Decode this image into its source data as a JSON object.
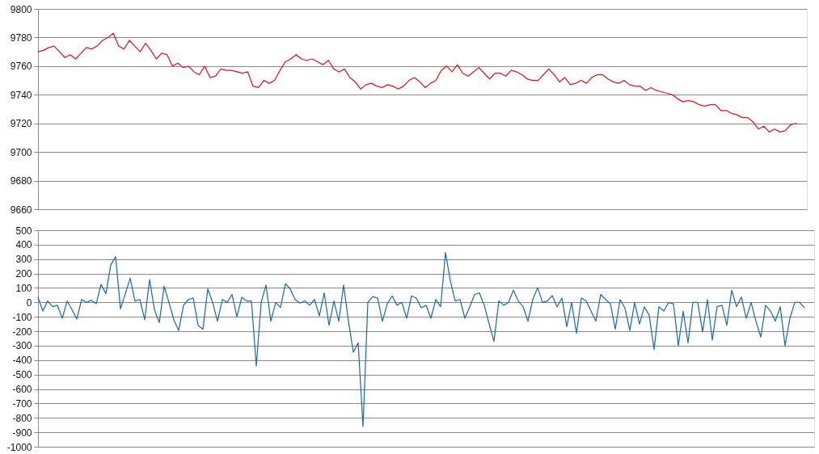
{
  "chart_data": [
    {
      "type": "line",
      "tick_labels": "y",
      "grid": "y",
      "ylim": [
        9660,
        9800
      ],
      "yticks": [
        9660,
        9680,
        9700,
        9720,
        9740,
        9760,
        9780,
        9800
      ],
      "categories": [
        null,
        null,
        null,
        null,
        null,
        null,
        null,
        null,
        null,
        null,
        null,
        null,
        null,
        null,
        null,
        null,
        null,
        null,
        null,
        null,
        null,
        null,
        null,
        null,
        null,
        null,
        null,
        null,
        null,
        null,
        null,
        null,
        null,
        null,
        null,
        null,
        null,
        null,
        null,
        null,
        null,
        null,
        null,
        null,
        null,
        null,
        null,
        null,
        null,
        null,
        null,
        null,
        null,
        null,
        null,
        null,
        null,
        null,
        null,
        null,
        null,
        null,
        null,
        null,
        null,
        null,
        null,
        null,
        null,
        null,
        null,
        null,
        null,
        null,
        null,
        null,
        null,
        null,
        null,
        null,
        null,
        null,
        null,
        null,
        null,
        null,
        null,
        null,
        null,
        null,
        null,
        null,
        null,
        null,
        null,
        null,
        null,
        null,
        null,
        null,
        null,
        null,
        null,
        null,
        null,
        null,
        null,
        null,
        null,
        null,
        null,
        null,
        null,
        null,
        null,
        null,
        null,
        null,
        null,
        null,
        null,
        null,
        null,
        null,
        null,
        null,
        null,
        null,
        null,
        null,
        null,
        null,
        null,
        null,
        null,
        null,
        null,
        null,
        null,
        null,
        null,
        null,
        null,
        null
      ],
      "series": [
        {
          "color": "#e8151b",
          "values": [
            9770,
            9771,
            9773,
            9774,
            9770,
            9766,
            9768,
            9765,
            9769,
            9773,
            9772,
            9774,
            9778,
            9780,
            9783,
            9774,
            9772,
            9778,
            9774,
            9770,
            9776,
            9771,
            9765,
            9769,
            9768,
            9760,
            9762,
            9759,
            9760,
            9756,
            9754,
            9760,
            9752,
            9753,
            9758,
            9757,
            9757,
            9756,
            9755,
            9756,
            9746,
            9745,
            9750,
            9748,
            9750,
            9757,
            9763,
            9765,
            9768,
            9765,
            9764,
            9765,
            9763,
            9761,
            9764,
            9758,
            9756,
            9758,
            9752,
            9749,
            9744,
            9747,
            9748,
            9746,
            9745,
            9747,
            9746,
            9744,
            9746,
            9750,
            9752,
            9749,
            9745,
            9748,
            9750,
            9757,
            9760,
            9756,
            9761,
            9755,
            9753,
            9756,
            9759,
            9755,
            9751,
            9755,
            9755,
            9753,
            9757,
            9756,
            9754,
            9751,
            9750,
            9750,
            9754,
            9758,
            9754,
            9749,
            9752,
            9747,
            9748,
            9750,
            9748,
            9752,
            9754,
            9754,
            9751,
            9749,
            9748,
            9750,
            9747,
            9746,
            9746,
            9743,
            9745,
            9743,
            9742,
            9741,
            9740,
            9737,
            9735,
            9736,
            9735,
            9733,
            9732,
            9733,
            9733,
            9729,
            9729,
            9727,
            9726,
            9724,
            9724,
            9721,
            9716,
            9718,
            9714,
            9716,
            9714,
            9715,
            9719,
            9720,
            null,
            null
          ]
        }
      ]
    },
    {
      "type": "line",
      "tick_labels": "y",
      "grid": "y",
      "ylim": [
        -1000,
        500
      ],
      "yticks": [
        -1000,
        -900,
        -800,
        -700,
        -600,
        -500,
        -400,
        -300,
        -200,
        -100,
        0,
        100,
        200,
        300,
        400,
        500
      ],
      "categories": [
        null,
        null,
        null,
        null,
        null,
        null,
        null,
        null,
        null,
        null,
        null,
        null,
        null,
        null,
        null,
        null,
        null,
        null,
        null,
        null,
        null,
        null,
        null,
        null,
        null,
        null,
        null,
        null,
        null,
        null,
        null,
        null,
        null,
        null,
        null,
        null,
        null,
        null,
        null,
        null,
        null,
        null,
        null,
        null,
        null,
        null,
        null,
        null,
        null,
        null,
        null,
        null,
        null,
        null,
        null,
        null,
        null,
        null,
        null,
        null,
        null,
        null,
        null,
        null,
        null,
        null,
        null,
        null,
        null,
        null,
        null,
        null,
        null,
        null,
        null,
        null,
        null,
        null,
        null,
        null,
        null,
        null,
        null,
        null,
        null,
        null,
        null,
        null,
        null,
        null,
        null,
        null,
        null,
        null,
        null,
        null,
        null,
        null,
        null,
        null,
        null,
        null,
        null,
        null,
        null,
        null,
        null,
        null,
        null,
        null,
        null,
        null,
        null,
        null,
        null,
        null,
        null,
        null,
        null,
        null,
        null,
        null,
        null,
        null,
        null,
        null,
        null,
        null,
        null,
        null,
        null,
        null,
        null,
        null,
        null,
        null,
        null,
        null,
        null,
        null,
        null,
        null,
        null,
        null,
        null,
        null,
        null,
        null,
        null,
        null,
        null,
        null,
        null,
        null,
        null,
        null,
        null,
        null,
        null,
        null,
        null
      ],
      "series": [
        {
          "color": "#1f6db3",
          "values": [
            35,
            -60,
            10,
            -30,
            -20,
            -110,
            10,
            -50,
            -115,
            20,
            0,
            15,
            -10,
            125,
            60,
            260,
            317,
            -45,
            60,
            168,
            10,
            20,
            -120,
            158,
            -50,
            -140,
            112,
            0,
            -120,
            -195,
            -20,
            20,
            30,
            -160,
            -185,
            93,
            0,
            -130,
            20,
            0,
            55,
            -100,
            35,
            10,
            10,
            -440,
            0,
            120,
            -130,
            0,
            -35,
            130,
            93,
            20,
            -5,
            10,
            -20,
            20,
            -93,
            65,
            -158,
            10,
            -130,
            120,
            -130,
            -345,
            -280,
            -860,
            0,
            40,
            30,
            -130,
            -10,
            45,
            -20,
            0,
            -110,
            45,
            30,
            -37,
            -20,
            -110,
            20,
            -30,
            345,
            150,
            10,
            20,
            -110,
            -30,
            55,
            65,
            -20,
            -150,
            -270,
            10,
            -20,
            0,
            85,
            10,
            -30,
            -130,
            20,
            102,
            0,
            10,
            47,
            -30,
            30,
            -168,
            0,
            -215,
            30,
            10,
            -60,
            -130,
            55,
            20,
            -10,
            -185,
            20,
            -40,
            -195,
            0,
            -150,
            -30,
            -90,
            -325,
            -30,
            -60,
            0,
            -10,
            -300,
            -60,
            -280,
            0,
            0,
            -205,
            20,
            -260,
            -30,
            -20,
            -158,
            84,
            -30,
            37,
            -110,
            0,
            -130,
            -240,
            -20,
            -60,
            -130,
            -30,
            -300,
            -110,
            0,
            0,
            -37,
            null,
            null
          ]
        }
      ]
    }
  ]
}
